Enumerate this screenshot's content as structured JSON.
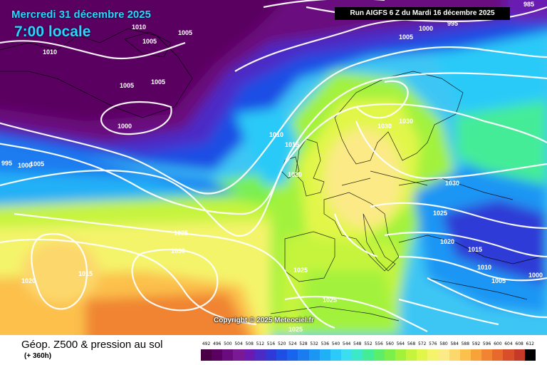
{
  "header": {
    "date_line": "Mercredi 31 décembre 2025",
    "time_line": "7:00 locale",
    "run_info": "Run AIGFS 6 Z du Mardi 16 décembre 2025"
  },
  "copyright": "Copyright © 2025 Meteociel.fr",
  "footer": {
    "title": "Géop. Z500 & pression au sol",
    "subtitle": "(+ 360h)"
  },
  "legend": {
    "values": [
      "492",
      "496",
      "500",
      "504",
      "508",
      "512",
      "516",
      "520",
      "524",
      "528",
      "532",
      "536",
      "540",
      "544",
      "548",
      "552",
      "556",
      "560",
      "564",
      "568",
      "572",
      "576",
      "580",
      "584",
      "588",
      "592",
      "596",
      "600",
      "604",
      "608",
      "612"
    ],
    "colors": [
      "#4a0045",
      "#5a0060",
      "#6b0c7e",
      "#7a1896",
      "#6a1ab2",
      "#4b2ac6",
      "#2f3ad6",
      "#1f4ee4",
      "#1864ec",
      "#1a7cf0",
      "#1c96f4",
      "#20b0f6",
      "#2ccaf8",
      "#3adef0",
      "#3ce8c8",
      "#44ec98",
      "#5cee68",
      "#7cf04a",
      "#a2f23c",
      "#c6f43c",
      "#e2f64a",
      "#f4f46a",
      "#fbea86",
      "#fcd86c",
      "#fcc04c",
      "#f8a23a",
      "#f08430",
      "#e66a2c",
      "#d84e28",
      "#c43a26",
      "#000000"
    ]
  },
  "pressure_labels": [
    "1010",
    "1005",
    "1005",
    "1010",
    "1005",
    "1005",
    "1000",
    "1010",
    "1015",
    "1020",
    "995",
    "1000",
    "1005",
    "1030",
    "1030",
    "1030",
    "1025",
    "1020",
    "1015",
    "1010",
    "1005",
    "1000",
    "1025",
    "1030",
    "1015",
    "1020",
    "1025",
    "1025",
    "1025",
    "985",
    "995",
    "1000",
    "1005"
  ]
}
